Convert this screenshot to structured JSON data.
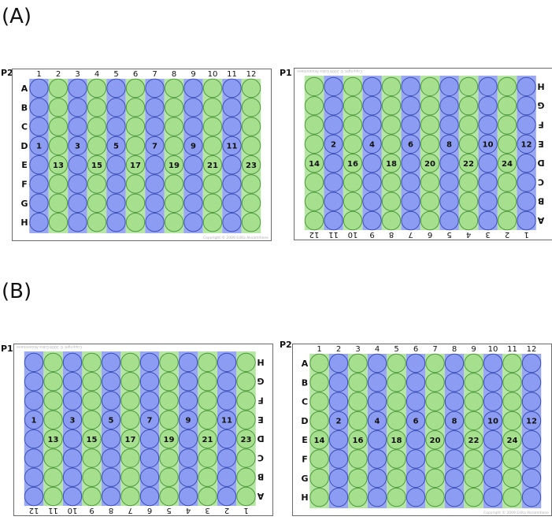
{
  "sections": [
    {
      "label": "(A)"
    },
    {
      "label": "(B)"
    }
  ],
  "plates": [
    {
      "name": "P2",
      "orientation": "normal",
      "first_color": "blue",
      "numbered_wells": [
        {
          "row": "D",
          "col": 1,
          "n": "1"
        },
        {
          "row": "D",
          "col": 3,
          "n": "3"
        },
        {
          "row": "D",
          "col": 5,
          "n": "5"
        },
        {
          "row": "D",
          "col": 7,
          "n": "7"
        },
        {
          "row": "D",
          "col": 9,
          "n": "9"
        },
        {
          "row": "D",
          "col": 11,
          "n": "11"
        },
        {
          "row": "E",
          "col": 2,
          "n": "13"
        },
        {
          "row": "E",
          "col": 4,
          "n": "15"
        },
        {
          "row": "E",
          "col": 6,
          "n": "17"
        },
        {
          "row": "E",
          "col": 8,
          "n": "19"
        },
        {
          "row": "E",
          "col": 10,
          "n": "21"
        },
        {
          "row": "E",
          "col": 12,
          "n": "23"
        }
      ]
    },
    {
      "name": "P1",
      "orientation": "rotated",
      "first_color": "blue",
      "numbered_wells": [
        {
          "row": "E",
          "col": 1,
          "n": "12"
        },
        {
          "row": "E",
          "col": 3,
          "n": "10"
        },
        {
          "row": "E",
          "col": 5,
          "n": "8"
        },
        {
          "row": "E",
          "col": 7,
          "n": "6"
        },
        {
          "row": "E",
          "col": 9,
          "n": "4"
        },
        {
          "row": "E",
          "col": 11,
          "n": "2"
        },
        {
          "row": "D",
          "col": 2,
          "n": "24"
        },
        {
          "row": "D",
          "col": 4,
          "n": "22"
        },
        {
          "row": "D",
          "col": 6,
          "n": "20"
        },
        {
          "row": "D",
          "col": 8,
          "n": "18"
        },
        {
          "row": "D",
          "col": 10,
          "n": "16"
        },
        {
          "row": "D",
          "col": 12,
          "n": "14"
        }
      ]
    },
    {
      "name": "P1",
      "orientation": "rotated",
      "first_color": "green",
      "numbered_wells": [
        {
          "row": "E",
          "col": 2,
          "n": "11"
        },
        {
          "row": "E",
          "col": 4,
          "n": "9"
        },
        {
          "row": "E",
          "col": 6,
          "n": "7"
        },
        {
          "row": "E",
          "col": 8,
          "n": "5"
        },
        {
          "row": "E",
          "col": 10,
          "n": "3"
        },
        {
          "row": "E",
          "col": 12,
          "n": "1"
        },
        {
          "row": "D",
          "col": 1,
          "n": "23"
        },
        {
          "row": "D",
          "col": 3,
          "n": "21"
        },
        {
          "row": "D",
          "col": 5,
          "n": "19"
        },
        {
          "row": "D",
          "col": 7,
          "n": "17"
        },
        {
          "row": "D",
          "col": 9,
          "n": "15"
        },
        {
          "row": "D",
          "col": 11,
          "n": "13"
        }
      ]
    },
    {
      "name": "P2",
      "orientation": "normal",
      "first_color": "green",
      "numbered_wells": [
        {
          "row": "D",
          "col": 2,
          "n": "2"
        },
        {
          "row": "D",
          "col": 4,
          "n": "4"
        },
        {
          "row": "D",
          "col": 6,
          "n": "6"
        },
        {
          "row": "D",
          "col": 8,
          "n": "8"
        },
        {
          "row": "D",
          "col": 10,
          "n": "10"
        },
        {
          "row": "D",
          "col": 12,
          "n": "12"
        },
        {
          "row": "E",
          "col": 1,
          "n": "14"
        },
        {
          "row": "E",
          "col": 3,
          "n": "16"
        },
        {
          "row": "E",
          "col": 5,
          "n": "18"
        },
        {
          "row": "E",
          "col": 7,
          "n": "20"
        },
        {
          "row": "E",
          "col": 9,
          "n": "22"
        },
        {
          "row": "E",
          "col": 11,
          "n": "24"
        }
      ]
    }
  ],
  "rows": [
    "A",
    "B",
    "C",
    "D",
    "E",
    "F",
    "G",
    "H"
  ],
  "columns": [
    "1",
    "2",
    "3",
    "4",
    "5",
    "6",
    "7",
    "8",
    "9",
    "10",
    "11",
    "12"
  ],
  "copyright": "Copyright © 2009 Edita Aksamitiene",
  "colors": {
    "blue_stripe": "#9aa8f4",
    "blue_well": "#8c9cf3",
    "blue_stroke": "#3b4fb8",
    "green_stripe": "#b5e6a4",
    "green_well": "#a6e08f",
    "green_stroke": "#4f9a3c",
    "plate_border": "#6a6a6a"
  }
}
